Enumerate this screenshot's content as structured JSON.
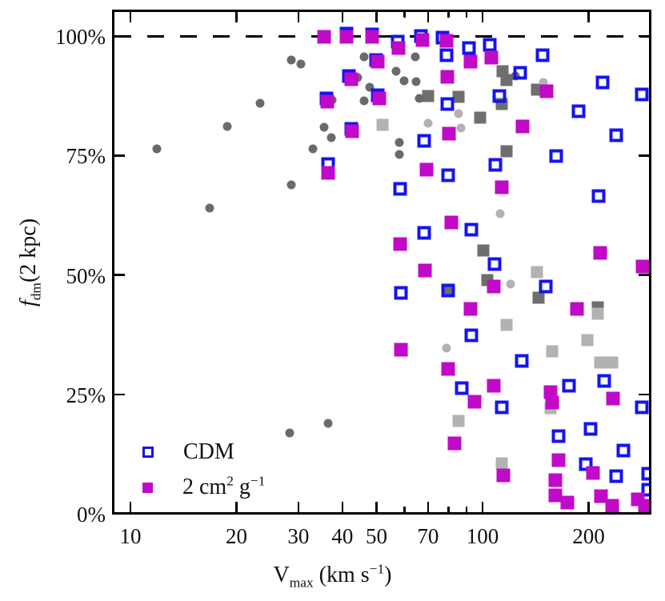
{
  "axes": {
    "x_tick_labels": [
      "10",
      "20",
      "30",
      "40",
      "50",
      "70",
      "100",
      "200"
    ],
    "x_ticks_major": [
      10,
      20,
      30,
      40,
      50,
      70,
      100,
      200
    ],
    "x_ticks_minor": [
      60,
      80,
      90
    ],
    "y_tick_labels": [
      "0%",
      "25%",
      "50%",
      "75%",
      "100%"
    ],
    "y_ticks_major": [
      0,
      25,
      50,
      75,
      100
    ],
    "xlabel_text": "V_max (km s^-1)",
    "ylabel_text": "f_dm(2 kpc)",
    "xlabel_parts": [
      {
        "t": "V"
      },
      {
        "t": "max",
        "sub": true
      },
      {
        "t": " (km s"
      },
      {
        "t": "−1",
        "sup": true
      },
      {
        "t": ")"
      }
    ],
    "ylabel_parts": [
      {
        "t": "f",
        "italic": true
      },
      {
        "t": "dm",
        "sub": true
      },
      {
        "t": "(2 kpc)"
      }
    ]
  },
  "legend": {
    "items": [
      {
        "series": "cdm",
        "label": "CDM",
        "parts": [
          {
            "t": "CDM"
          }
        ]
      },
      {
        "series": "sidm",
        "label": "2 cm^2 g^-1",
        "parts": [
          {
            "t": "2 cm"
          },
          {
            "t": "2",
            "sup": true
          },
          {
            "t": " g"
          },
          {
            "t": "−1",
            "sup": true
          }
        ]
      }
    ]
  },
  "colors": {
    "cdm_blue": "#1414f0",
    "sidm_magenta": "#c00ac8",
    "gray_dark": "#6a6a6a",
    "gray_light": "#b2b2b2",
    "axis_black": "#000000"
  },
  "chart_data": {
    "type": "scatter",
    "title": "",
    "xlabel": "V_max (km s^-1)",
    "ylabel": "f_dm(2 kpc)",
    "x_scale": "log",
    "x_range": [
      9,
      302
    ],
    "y_range_percent": [
      0,
      105
    ],
    "grid": false,
    "legend_position": "lower-left",
    "reference_line": {
      "y_percent": 100,
      "style": "dashed",
      "color": "#000000"
    },
    "series": [
      {
        "name": "CDM",
        "marker": "open-square",
        "color": "#1414f0",
        "points": [
          [
            41,
            100.5
          ],
          [
            48.5,
            100.3
          ],
          [
            57.5,
            98.8
          ],
          [
            67,
            100
          ],
          [
            77,
            99.7
          ],
          [
            79,
            96
          ],
          [
            91.5,
            97.5
          ],
          [
            105,
            98.1
          ],
          [
            49.8,
            94.9
          ],
          [
            148,
            96
          ],
          [
            128,
            92.3
          ],
          [
            219,
            90.3
          ],
          [
            283,
            87.8
          ],
          [
            111.5,
            87.5
          ],
          [
            187,
            84.3
          ],
          [
            41.8,
            91.6
          ],
          [
            36,
            87
          ],
          [
            50.3,
            87.6
          ],
          [
            79.6,
            85.8
          ],
          [
            240,
            79.3
          ],
          [
            68.3,
            78
          ],
          [
            42.3,
            80.5
          ],
          [
            162,
            74.8
          ],
          [
            109,
            73
          ],
          [
            36.4,
            73.2
          ],
          [
            80,
            70.8
          ],
          [
            58.3,
            68
          ],
          [
            214,
            66.5
          ],
          [
            68.3,
            58.8
          ],
          [
            93,
            59.5
          ],
          [
            108,
            52.3
          ],
          [
            129,
            32
          ],
          [
            92.7,
            37.3
          ],
          [
            87.3,
            26.3
          ],
          [
            176,
            26.8
          ],
          [
            221,
            27.8
          ],
          [
            113.5,
            22.2
          ],
          [
            283,
            22.3
          ],
          [
            58.5,
            46.2
          ],
          [
            79.8,
            46.7
          ],
          [
            151,
            47.6
          ],
          [
            203,
            17.8
          ],
          [
            164,
            16.2
          ],
          [
            196,
            10.4
          ],
          [
            240,
            7.8
          ],
          [
            251,
            13.3
          ],
          [
            295,
            8.3
          ],
          [
            295,
            5
          ]
        ]
      },
      {
        "name": "2 cm^2 g^-1",
        "marker": "filled-square",
        "color": "#c00ac8",
        "points": [
          [
            35.5,
            99.8
          ],
          [
            41,
            99.8
          ],
          [
            48.5,
            99.8
          ],
          [
            57.8,
            97.5
          ],
          [
            67.4,
            99.2
          ],
          [
            79,
            99
          ],
          [
            79.5,
            91.5
          ],
          [
            92.5,
            94.7
          ],
          [
            106,
            95.5
          ],
          [
            50.5,
            94.7
          ],
          [
            42.4,
            91
          ],
          [
            36.2,
            86.2
          ],
          [
            50.8,
            86.9
          ],
          [
            152,
            88.4
          ],
          [
            42.7,
            80
          ],
          [
            80.4,
            79.5
          ],
          [
            130,
            81.1
          ],
          [
            36.5,
            71.3
          ],
          [
            69.5,
            72.1
          ],
          [
            113.5,
            68.4
          ],
          [
            81.6,
            60.9
          ],
          [
            58.2,
            56.4
          ],
          [
            68.5,
            50.9
          ],
          [
            107.6,
            47.5
          ],
          [
            216,
            54.6
          ],
          [
            285,
            51.7
          ],
          [
            92.5,
            42.9
          ],
          [
            185,
            42.9
          ],
          [
            58.5,
            34.3
          ],
          [
            80,
            30.3
          ],
          [
            107.6,
            26.8
          ],
          [
            95,
            23.5
          ],
          [
            235,
            24.2
          ],
          [
            156,
            25.4
          ],
          [
            158,
            23.2
          ],
          [
            83.4,
            14.8
          ],
          [
            114.6,
            8
          ],
          [
            164,
            11.2
          ],
          [
            161,
            7
          ],
          [
            206,
            8.6
          ],
          [
            174,
            2.3
          ],
          [
            161,
            3.8
          ],
          [
            217,
            3.7
          ],
          [
            233,
            1.7
          ],
          [
            276,
            3
          ],
          [
            290,
            1.7
          ]
        ]
      },
      {
        "name": "gray-circles-dark",
        "marker": "filled-circle",
        "color": "#6a6a6a",
        "points": [
          [
            11.9,
            76.4
          ],
          [
            16.8,
            64
          ],
          [
            18.8,
            81
          ],
          [
            23.4,
            85.9
          ],
          [
            28.6,
            95
          ],
          [
            30.5,
            94.2
          ],
          [
            28.7,
            68.8
          ],
          [
            33,
            76.4
          ],
          [
            35.5,
            80.9
          ],
          [
            37.2,
            78.8
          ],
          [
            37.4,
            86.6
          ],
          [
            46,
            95.7
          ],
          [
            44.2,
            91.3
          ],
          [
            47.7,
            89.3
          ],
          [
            46,
            86.4
          ],
          [
            56.8,
            92.7
          ],
          [
            58,
            77.8
          ],
          [
            58,
            75.2
          ],
          [
            60,
            90.7
          ],
          [
            64.4,
            95.6
          ],
          [
            64.7,
            90.4
          ],
          [
            66,
            86.9
          ],
          [
            124,
            91.6
          ],
          [
            28.3,
            17
          ],
          [
            36.4,
            19
          ]
        ]
      },
      {
        "name": "gray-circles-light",
        "marker": "filled-circle",
        "color": "#b2b2b2",
        "points": [
          [
            70,
            81.8
          ],
          [
            85.5,
            83.8
          ],
          [
            87,
            80.7
          ],
          [
            149,
            90.3
          ],
          [
            112,
            62.8
          ],
          [
            120,
            48
          ],
          [
            79,
            34.7
          ]
        ]
      },
      {
        "name": "gray-squares-dark",
        "marker": "filled-square",
        "color": "#6e6e6e",
        "points": [
          [
            70,
            87.4
          ],
          [
            85.5,
            87.2
          ],
          [
            114,
            92.7
          ],
          [
            117,
            90.8
          ],
          [
            143,
            88.7
          ],
          [
            98.6,
            82.9
          ],
          [
            113.6,
            85.7
          ],
          [
            117,
            75.8
          ],
          [
            100.5,
            55.1
          ],
          [
            103,
            48.9
          ],
          [
            80.4,
            46.7
          ],
          [
            144,
            45.2
          ],
          [
            212,
            43.2
          ]
        ]
      },
      {
        "name": "gray-squares-light",
        "marker": "filled-square",
        "color": "#b2b2b2",
        "points": [
          [
            52,
            81.4
          ],
          [
            143,
            50.6
          ],
          [
            117,
            39.6
          ],
          [
            199,
            36.4
          ],
          [
            216,
            31.7
          ],
          [
            233,
            31.7
          ],
          [
            213,
            41.9
          ],
          [
            158,
            34
          ],
          [
            156,
            22.1
          ],
          [
            113.5,
            10.6
          ],
          [
            85.6,
            19.4
          ]
        ]
      }
    ]
  }
}
